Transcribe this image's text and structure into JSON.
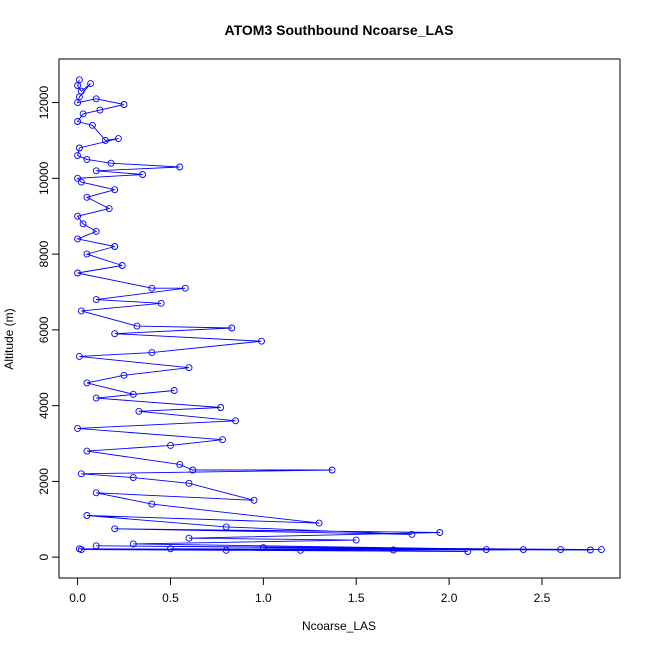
{
  "chart_data": {
    "type": "line",
    "title": "ATOM3 Southbound Ncoarse_LAS",
    "xlabel": "Ncoarse_LAS",
    "ylabel": "Altitude (m)",
    "xlim": [
      -0.1,
      2.92
    ],
    "ylim": [
      -550,
      13150
    ],
    "xticks": [
      0.0,
      0.5,
      1.0,
      1.5,
      2.0,
      2.5
    ],
    "xtick_labels": [
      "0.0",
      "0.5",
      "1.0",
      "1.5",
      "2.0",
      "2.5"
    ],
    "yticks": [
      0,
      2000,
      4000,
      6000,
      8000,
      10000,
      12000
    ],
    "ytick_labels": [
      "0",
      "2000",
      "4000",
      "6000",
      "8000",
      "10000",
      "12000"
    ],
    "grid": false,
    "marker": "open-circle",
    "series": [
      {
        "color": "#0000ff",
        "points": [
          [
            0.01,
            12600
          ],
          [
            0.0,
            12450
          ],
          [
            0.02,
            12300
          ],
          [
            0.07,
            12500
          ],
          [
            0.01,
            12150
          ],
          [
            0.0,
            12000
          ],
          [
            0.1,
            12100
          ],
          [
            0.25,
            11950
          ],
          [
            0.12,
            11800
          ],
          [
            0.03,
            11700
          ],
          [
            0.0,
            11500
          ],
          [
            0.08,
            11400
          ],
          [
            0.15,
            11000
          ],
          [
            0.22,
            11050
          ],
          [
            0.01,
            10800
          ],
          [
            0.0,
            10600
          ],
          [
            0.05,
            10500
          ],
          [
            0.18,
            10400
          ],
          [
            0.55,
            10300
          ],
          [
            0.1,
            10200
          ],
          [
            0.35,
            10100
          ],
          [
            0.0,
            10000
          ],
          [
            0.02,
            9900
          ],
          [
            0.2,
            9700
          ],
          [
            0.05,
            9500
          ],
          [
            0.17,
            9200
          ],
          [
            0.0,
            9000
          ],
          [
            0.03,
            8800
          ],
          [
            0.1,
            8600
          ],
          [
            0.0,
            8400
          ],
          [
            0.2,
            8200
          ],
          [
            0.05,
            8000
          ],
          [
            0.24,
            7700
          ],
          [
            0.0,
            7500
          ],
          [
            0.4,
            7100
          ],
          [
            0.58,
            7100
          ],
          [
            0.1,
            6800
          ],
          [
            0.45,
            6700
          ],
          [
            0.02,
            6500
          ],
          [
            0.32,
            6100
          ],
          [
            0.83,
            6050
          ],
          [
            0.2,
            5900
          ],
          [
            0.99,
            5700
          ],
          [
            0.4,
            5400
          ],
          [
            0.01,
            5300
          ],
          [
            0.6,
            5000
          ],
          [
            0.25,
            4800
          ],
          [
            0.05,
            4600
          ],
          [
            0.3,
            4300
          ],
          [
            0.52,
            4400
          ],
          [
            0.1,
            4200
          ],
          [
            0.77,
            3950
          ],
          [
            0.33,
            3850
          ],
          [
            0.85,
            3600
          ],
          [
            0.0,
            3400
          ],
          [
            0.78,
            3100
          ],
          [
            0.5,
            2950
          ],
          [
            0.05,
            2800
          ],
          [
            0.55,
            2450
          ],
          [
            0.62,
            2300
          ],
          [
            1.37,
            2300
          ],
          [
            0.02,
            2200
          ],
          [
            0.3,
            2100
          ],
          [
            0.6,
            1950
          ],
          [
            0.95,
            1500
          ],
          [
            0.1,
            1700
          ],
          [
            0.4,
            1400
          ],
          [
            1.3,
            900
          ],
          [
            0.05,
            1100
          ],
          [
            0.8,
            800
          ],
          [
            1.8,
            600
          ],
          [
            0.2,
            750
          ],
          [
            1.95,
            650
          ],
          [
            0.6,
            500
          ],
          [
            1.5,
            450
          ],
          [
            0.3,
            350
          ],
          [
            2.4,
            200
          ],
          [
            1.0,
            250
          ],
          [
            2.82,
            200
          ],
          [
            0.1,
            300
          ],
          [
            2.76,
            190
          ],
          [
            0.5,
            220
          ],
          [
            2.6,
            200
          ],
          [
            1.2,
            180
          ],
          [
            2.1,
            150
          ],
          [
            0.02,
            200
          ],
          [
            2.2,
            200
          ],
          [
            0.8,
            180
          ],
          [
            1.7,
            190
          ],
          [
            0.01,
            220
          ]
        ]
      }
    ]
  }
}
